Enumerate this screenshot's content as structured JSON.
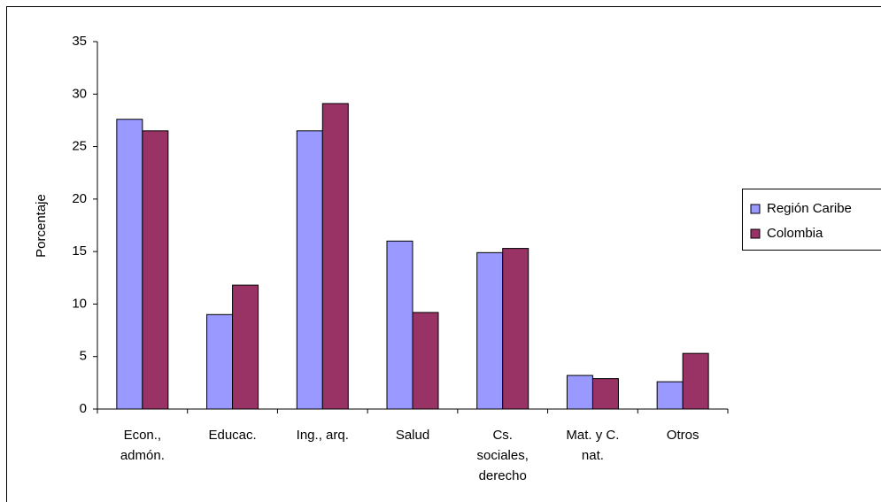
{
  "chart_data": {
    "type": "bar",
    "y_label": "Porcentaje",
    "categories": [
      "Econ., admón.",
      "Educac.",
      "Ing., arq.",
      "Salud",
      "Cs. sociales, derecho",
      "Mat. y C. nat.",
      "Otros"
    ],
    "series": [
      {
        "name": "Región Caribe",
        "color": "#9999ff",
        "values": [
          27.6,
          9.0,
          26.5,
          16.0,
          14.9,
          3.2,
          2.6
        ]
      },
      {
        "name": "Colombia",
        "color": "#993366",
        "values": [
          26.5,
          11.8,
          29.1,
          9.2,
          15.3,
          2.9,
          5.3
        ]
      }
    ],
    "ylim": [
      0,
      35
    ],
    "yticks": [
      0,
      5,
      10,
      15,
      20,
      25,
      30,
      35
    ],
    "grid": false,
    "legend": "right"
  }
}
